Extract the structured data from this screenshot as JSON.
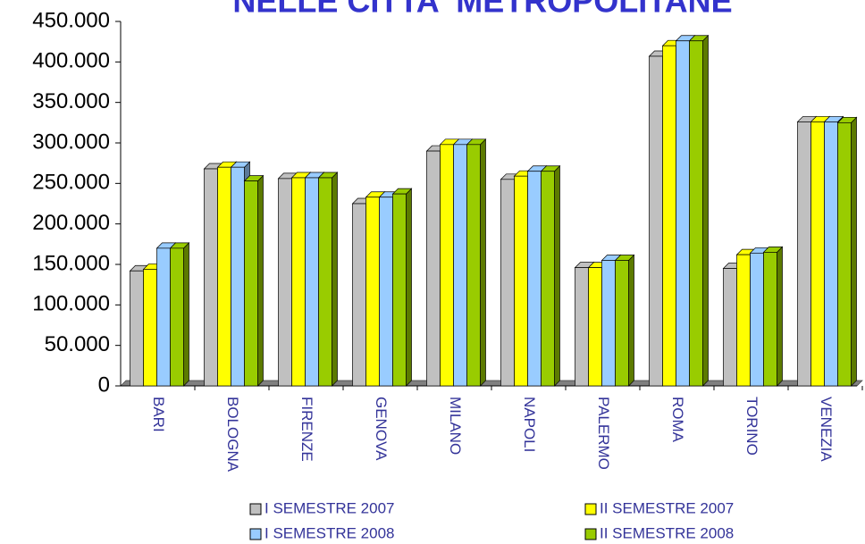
{
  "chart_data": {
    "type": "bar3d",
    "title": "NELLE CITTA' METROPOLITANE",
    "categories": [
      "BARI",
      "BOLOGNA",
      "FIRENZE",
      "GENOVA",
      "MILANO",
      "NAPOLI",
      "PALERMO",
      "ROMA",
      "TORINO",
      "VENEZIA"
    ],
    "series": [
      {
        "name": "I SEMESTRE 2007",
        "color": "#c0c0c0",
        "values": [
          142000,
          268000,
          256000,
          225000,
          290000,
          255000,
          146000,
          407000,
          145000,
          326000
        ]
      },
      {
        "name": "II SEMESTRE 2007",
        "color": "#ffff00",
        "values": [
          144000,
          270000,
          257000,
          233000,
          298000,
          259000,
          146000,
          420000,
          162000,
          326000
        ]
      },
      {
        "name": "I SEMESTRE 2008",
        "color": "#99ccff",
        "values": [
          170000,
          270000,
          257000,
          233000,
          298000,
          265000,
          155000,
          426000,
          164000,
          326000
        ]
      },
      {
        "name": "II SEMESTRE 2008",
        "color": "#99cc00",
        "values": [
          170000,
          253000,
          257000,
          237000,
          298000,
          265000,
          155000,
          426000,
          165000,
          325000
        ]
      }
    ],
    "ylim": [
      0,
      450000
    ],
    "yticks": [
      0,
      {
        "value": 50000,
        "label": "50.000"
      },
      {
        "value": 100000,
        "label": "100.000"
      },
      {
        "value": 150000,
        "label": "150.000"
      },
      {
        "value": 200000,
        "label": "200.000"
      },
      {
        "value": 250000,
        "label": "250.000"
      },
      {
        "value": 300000,
        "label": "300.000"
      },
      {
        "value": 350000,
        "label": "350.000"
      },
      {
        "value": 400000,
        "label": "400.000"
      },
      {
        "value": 450000,
        "label": "450.000"
      }
    ],
    "legend": "bottom"
  }
}
